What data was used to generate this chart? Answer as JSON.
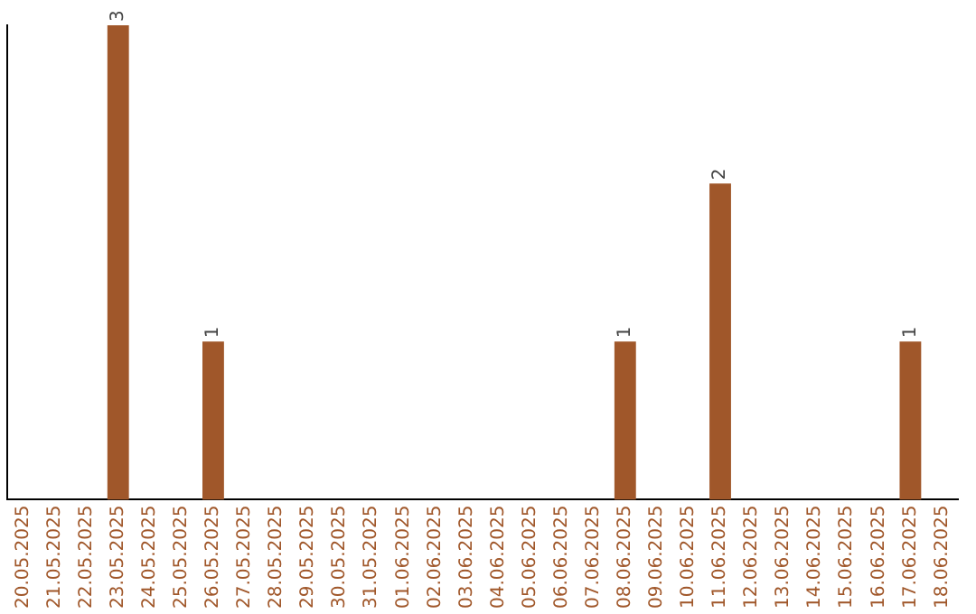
{
  "chart_data": {
    "type": "bar",
    "categories": [
      "20.05.2025",
      "21.05.2025",
      "22.05.2025",
      "23.05.2025",
      "24.05.2025",
      "25.05.2025",
      "26.05.2025",
      "27.05.2025",
      "28.05.2025",
      "29.05.2025",
      "30.05.2025",
      "31.05.2025",
      "01.06.2025",
      "02.06.2025",
      "03.06.2025",
      "04.06.2025",
      "05.06.2025",
      "06.06.2025",
      "07.06.2025",
      "08.06.2025",
      "09.06.2025",
      "10.06.2025",
      "11.06.2025",
      "12.06.2025",
      "13.06.2025",
      "14.06.2025",
      "15.06.2025",
      "16.06.2025",
      "17.06.2025",
      "18.06.2025"
    ],
    "values": [
      0,
      0,
      0,
      3,
      0,
      0,
      1,
      0,
      0,
      0,
      0,
      0,
      0,
      0,
      0,
      0,
      0,
      0,
      0,
      1,
      0,
      0,
      2,
      0,
      0,
      0,
      0,
      0,
      1,
      0
    ],
    "value_labels": [
      null,
      null,
      null,
      "3",
      null,
      null,
      "1",
      null,
      null,
      null,
      null,
      null,
      null,
      null,
      null,
      null,
      null,
      null,
      null,
      "1",
      null,
      null,
      "2",
      null,
      null,
      null,
      null,
      null,
      "1",
      null
    ],
    "color": "#a0572a",
    "grid": false,
    "legend": false,
    "tick_labels": "x"
  }
}
